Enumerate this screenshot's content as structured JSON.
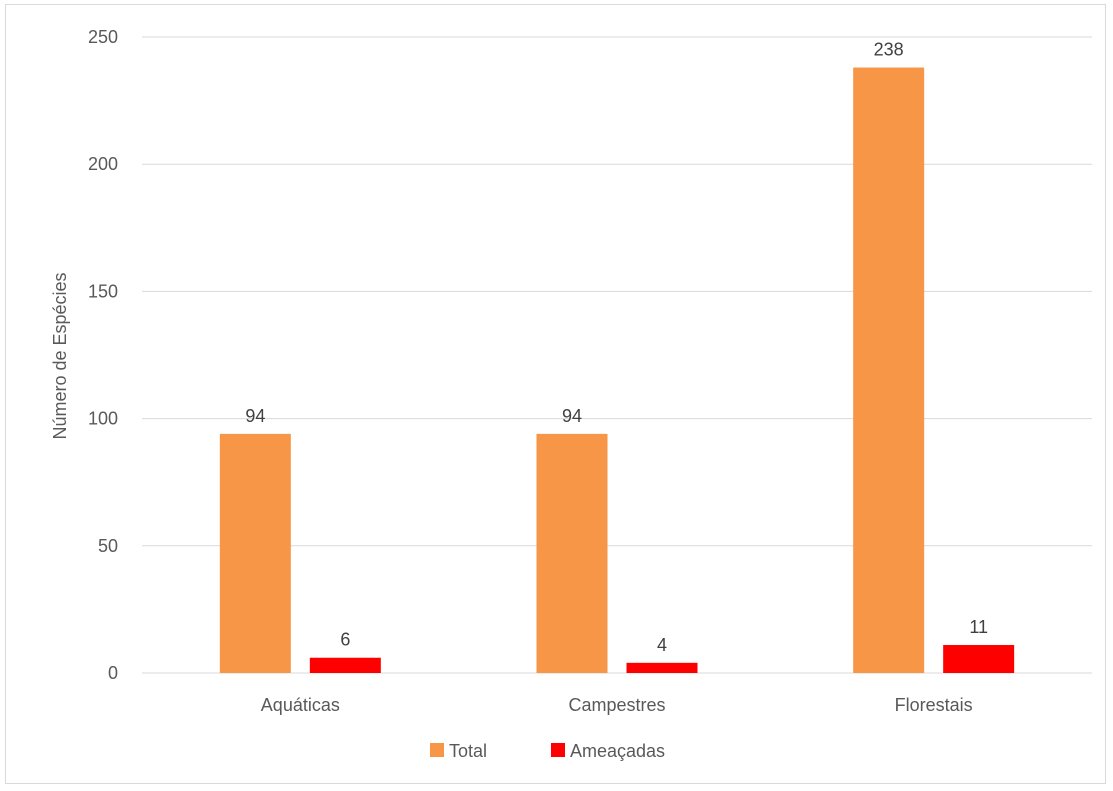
{
  "chart_data": {
    "type": "bar",
    "title": "",
    "xlabel": "",
    "ylabel": "Número de Espécies",
    "categories": [
      "Aquáticas",
      "Campestres",
      "Florestais"
    ],
    "series": [
      {
        "name": "Total",
        "values": [
          94,
          94,
          238
        ],
        "color": "#f79646"
      },
      {
        "name": "Ameaçadas",
        "values": [
          6,
          4,
          11
        ],
        "color": "#ff0000"
      }
    ],
    "ylim": [
      0,
      250
    ],
    "yticks": [
      0,
      50,
      100,
      150,
      200,
      250
    ],
    "grid": true,
    "legend_position": "bottom",
    "data_labels": true
  }
}
